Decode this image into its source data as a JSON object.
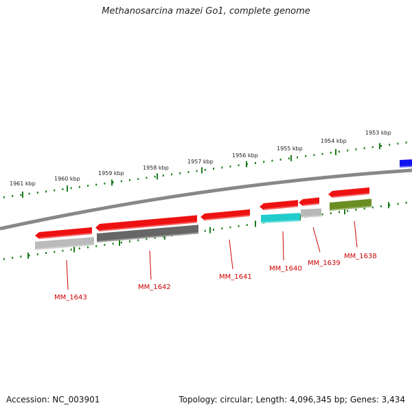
{
  "title": "Methanosarcina mazei Go1, complete genome",
  "accession": "Accession: NC_003901",
  "summary": "Topology: circular; Length: 4,096,345 bp; Genes: 3,434",
  "colors": {
    "backbone": "#888888",
    "tick": "#1a7a1a",
    "label_gene": "#cc0000",
    "label_kbp": "#222222"
  },
  "kbp_labels": [
    "1961 kbp",
    "1960 kbp",
    "1959 kbp",
    "1958 kbp",
    "1957 kbp",
    "1956 kbp",
    "1955 kbp",
    "1954 kbp",
    "1953 kbp"
  ],
  "genes": [
    {
      "id": "MM_1643",
      "label": "MM_1643",
      "color": "#ee1111"
    },
    {
      "id": "MM_1642",
      "label": "MM_1642",
      "color": "#ee1111"
    },
    {
      "id": "MM_1641",
      "label": "MM_1641",
      "color": "#ee1111"
    },
    {
      "id": "MM_1640",
      "label": "MM_1640",
      "color": "#ee1111"
    },
    {
      "id": "MM_1639",
      "label": "MM_1639",
      "color": "#ee1111"
    },
    {
      "id": "MM_1638",
      "label": "MM_1638",
      "color": "#ee1111"
    }
  ],
  "features": [
    {
      "name": "MM_1643-feature",
      "color": "#bbbbbb"
    },
    {
      "name": "MM_1642-feature",
      "color": "#666666"
    },
    {
      "name": "MM_1640-feature",
      "color": "#22cccc"
    },
    {
      "name": "MM_1639-feature",
      "color": "#b8b8b8"
    },
    {
      "name": "MM_1638-feature",
      "color": "#6b8e23"
    },
    {
      "name": "edge-feature",
      "color": "#1111ee"
    }
  ]
}
